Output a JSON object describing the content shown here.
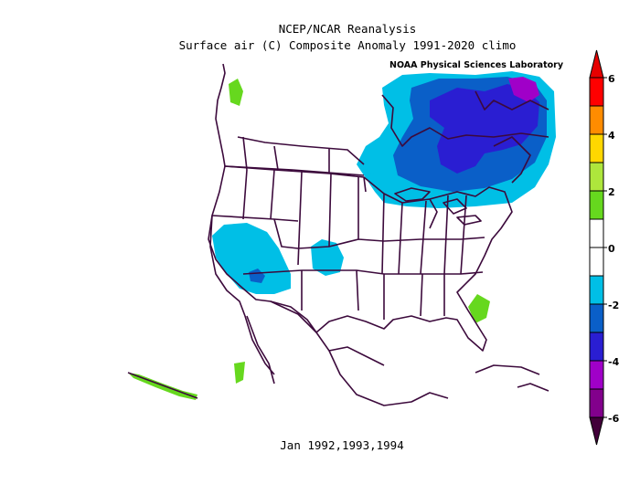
{
  "title_line1": "NCEP/NCAR Reanalysis",
  "title_line2": "Surface air (C) Composite Anomaly 1991-2020 climo",
  "lab_credit": "NOAA Physical Sciences Laboratory",
  "footer": "Jan 1992,1993,1994",
  "colorbar": {
    "ticks": [
      "6",
      "4",
      "2",
      "0",
      "-2",
      "-4",
      "-6"
    ],
    "colors": [
      "#ff0000",
      "#ff8c00",
      "#ffd700",
      "#aee63c",
      "#66d81e",
      "#ffffff",
      "#ffffff",
      "#00bfe6",
      "#0a5fc8",
      "#2a1ed2",
      "#a000c8",
      "#82008c"
    ],
    "top_arrow_color": "#e60000",
    "bottom_arrow_color": "#42003a"
  },
  "anomaly_colors": {
    "light_blue": "#00bfe6",
    "mid_blue": "#0a5fc8",
    "dark_blue": "#2a1ed2",
    "magenta": "#a000c8",
    "green": "#66d81e",
    "boundaries": "#3c0a3c"
  }
}
